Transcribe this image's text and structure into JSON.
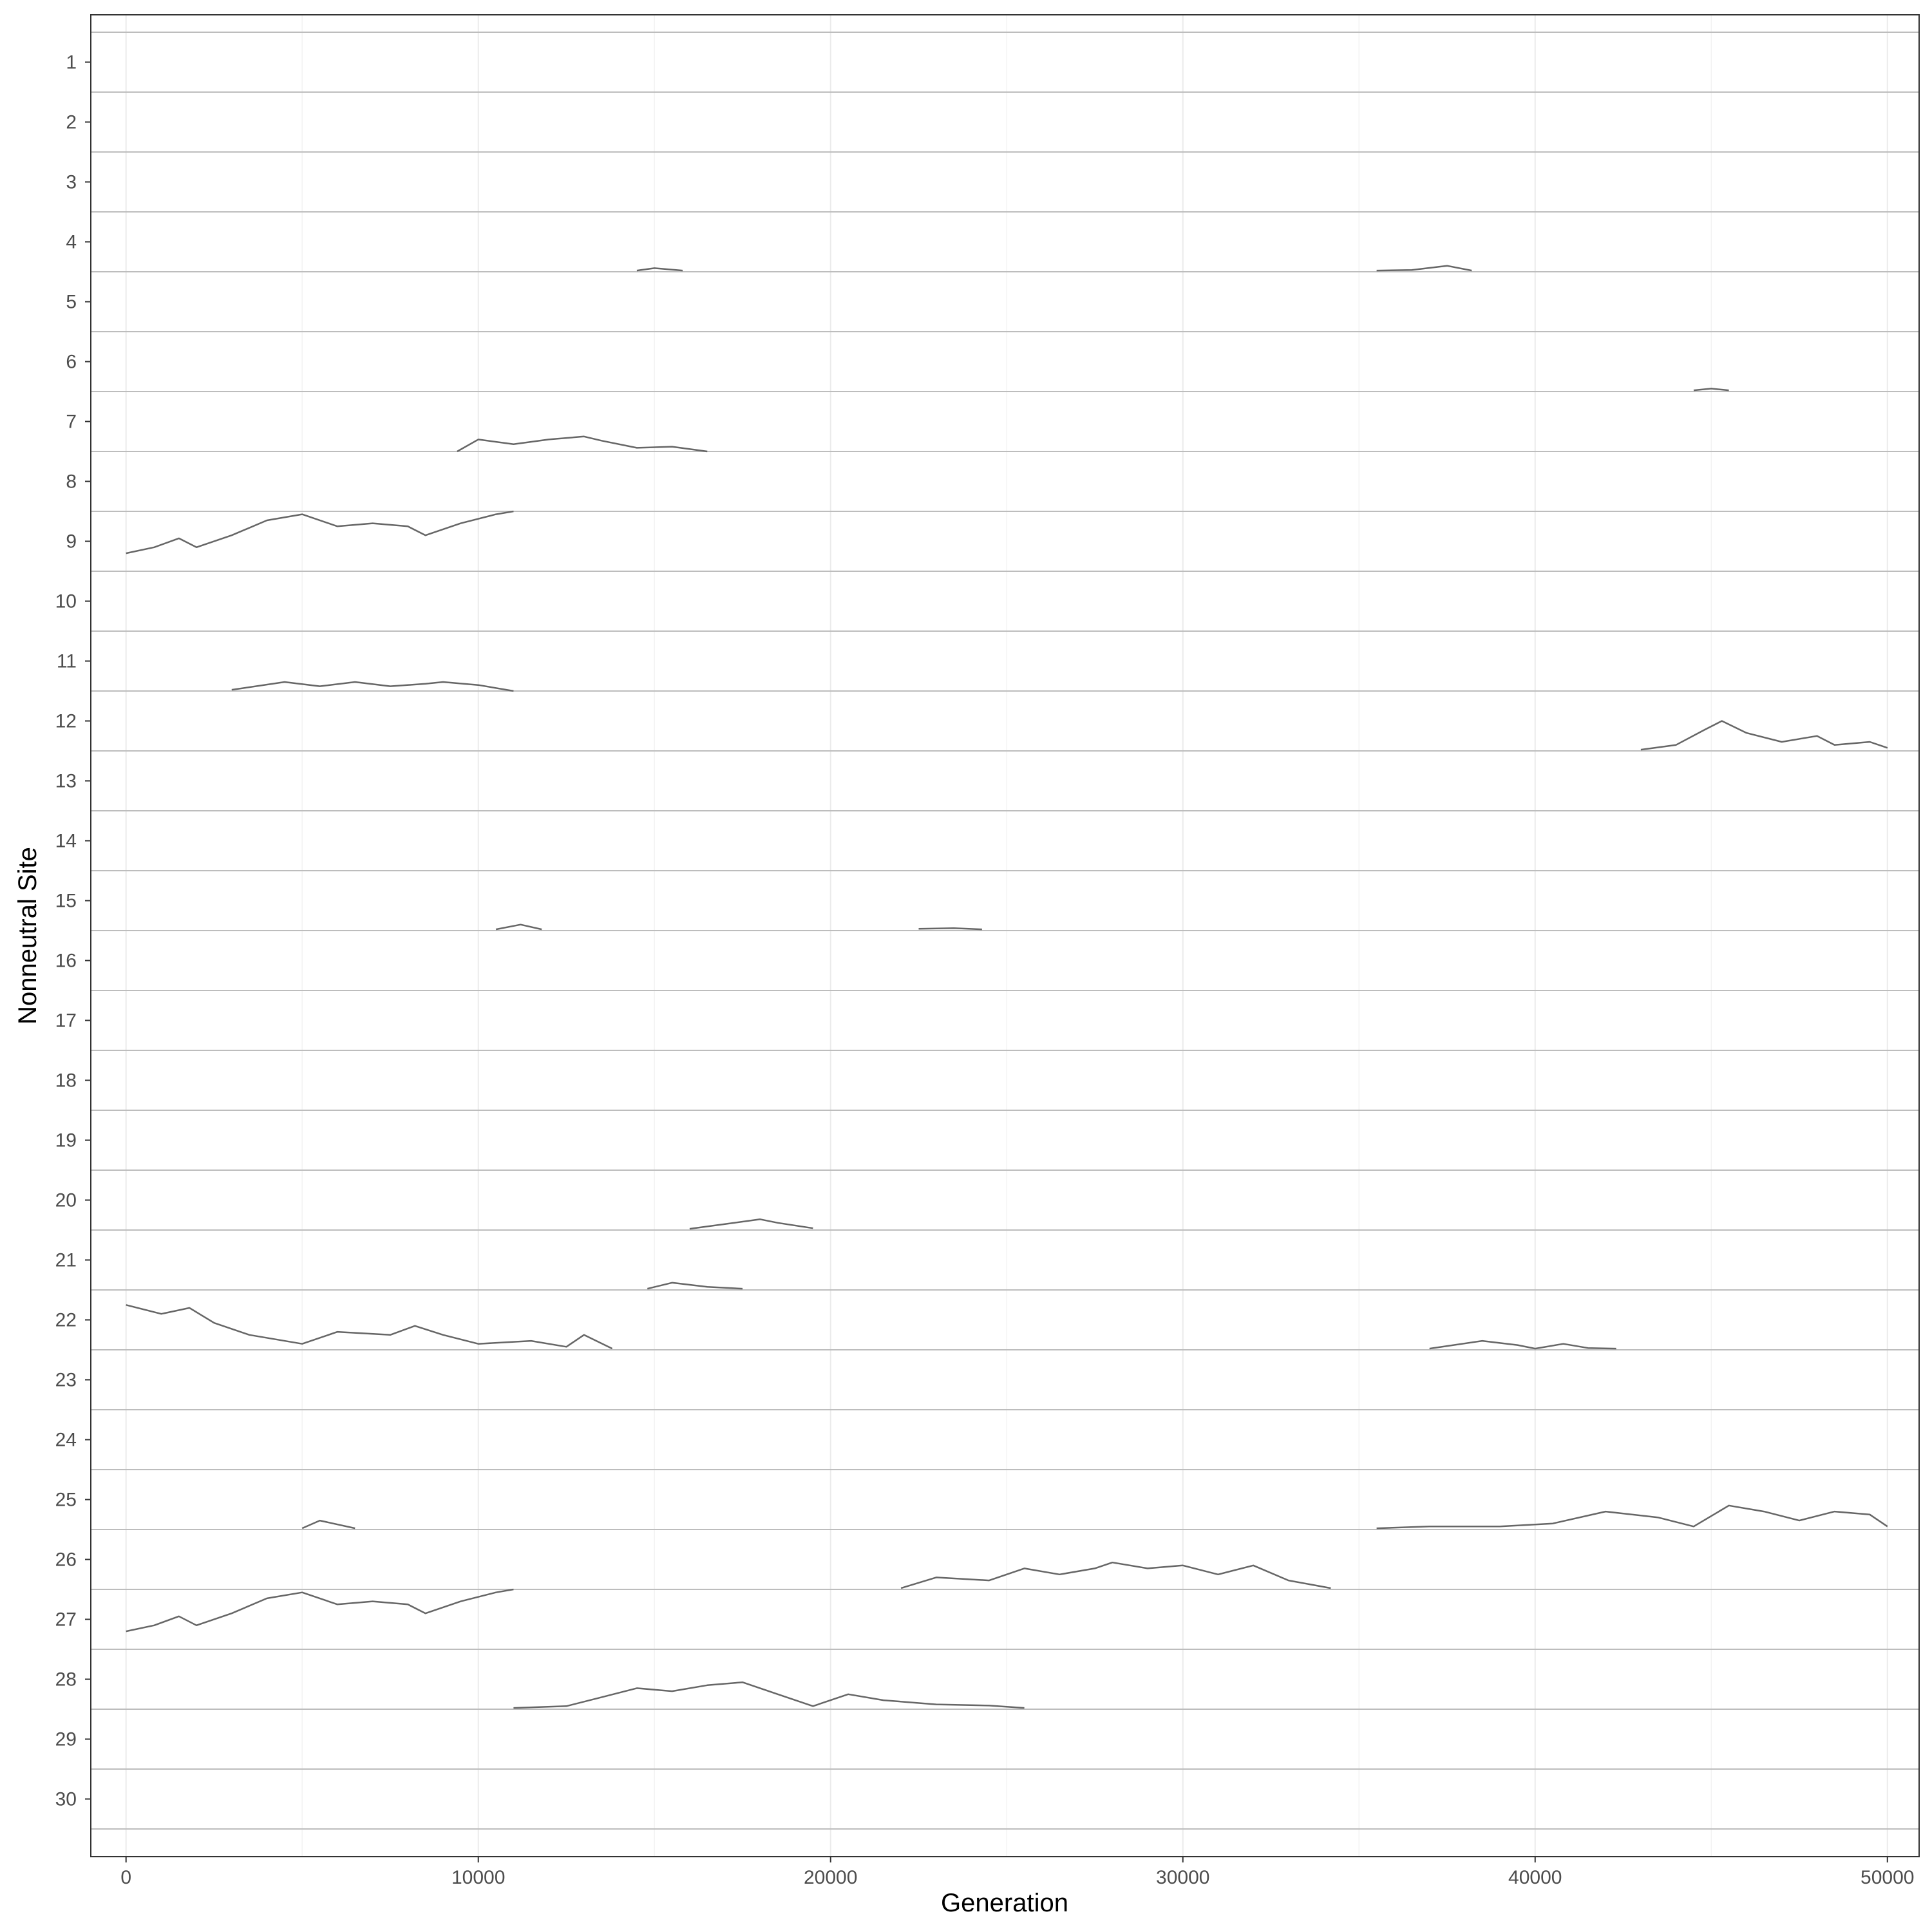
{
  "chart_data": {
    "type": "line",
    "xlabel": "Generation",
    "ylabel": "Nonneutral Site",
    "xlim": [
      -1000,
      50900
    ],
    "x_ticks": [
      0,
      10000,
      20000,
      30000,
      40000,
      50000
    ],
    "x_tick_labels": [
      "0",
      "10000",
      "20000",
      "30000",
      "40000",
      "50000"
    ],
    "y_tick_labels": [
      "1",
      "2",
      "3",
      "4",
      "5",
      "6",
      "7",
      "8",
      "9",
      "10",
      "11",
      "12",
      "13",
      "14",
      "15",
      "16",
      "17",
      "18",
      "19",
      "20",
      "21",
      "22",
      "23",
      "24",
      "25",
      "26",
      "27",
      "28",
      "29",
      "30"
    ],
    "grid": true,
    "line_color": "#666666",
    "baseline_color": "#bdbdbd",
    "value_note": "frequency within each site band (0-1); band height = 1",
    "series": [
      {
        "site": "4",
        "points": [
          [
            35500,
            0.02
          ],
          [
            36500,
            0.03
          ],
          [
            37500,
            0.1
          ],
          [
            38200,
            0.02
          ]
        ]
      },
      {
        "site": "4",
        "points": [
          [
            14500,
            0.02
          ],
          [
            15000,
            0.06
          ],
          [
            15800,
            0.02
          ]
        ]
      },
      {
        "site": "6",
        "points": [
          [
            44500,
            0.02
          ],
          [
            45000,
            0.05
          ],
          [
            45500,
            0.02
          ]
        ]
      },
      {
        "site": "7",
        "points": [
          [
            9400,
            0.0
          ],
          [
            10000,
            0.2
          ],
          [
            11000,
            0.12
          ],
          [
            12000,
            0.2
          ],
          [
            13000,
            0.25
          ],
          [
            13500,
            0.18
          ],
          [
            14500,
            0.06
          ],
          [
            15500,
            0.08
          ],
          [
            16500,
            0.0
          ]
        ]
      },
      {
        "site": "9",
        "points": [
          [
            0,
            0.3
          ],
          [
            800,
            0.4
          ],
          [
            1500,
            0.55
          ],
          [
            2000,
            0.4
          ],
          [
            3000,
            0.6
          ],
          [
            4000,
            0.85
          ],
          [
            5000,
            0.95
          ],
          [
            6000,
            0.75
          ],
          [
            7000,
            0.8
          ],
          [
            8000,
            0.75
          ],
          [
            8500,
            0.6
          ],
          [
            9500,
            0.8
          ],
          [
            10500,
            0.95
          ],
          [
            11000,
            1.0
          ]
        ]
      },
      {
        "site": "11",
        "points": [
          [
            3000,
            0.02
          ],
          [
            4500,
            0.15
          ],
          [
            5500,
            0.08
          ],
          [
            6500,
            0.15
          ],
          [
            7500,
            0.08
          ],
          [
            8500,
            0.12
          ],
          [
            9000,
            0.15
          ],
          [
            10000,
            0.1
          ],
          [
            11000,
            0.0
          ]
        ]
      },
      {
        "site": "12",
        "points": [
          [
            43000,
            0.02
          ],
          [
            44000,
            0.1
          ],
          [
            44800,
            0.35
          ],
          [
            45300,
            0.5
          ],
          [
            46000,
            0.3
          ],
          [
            47000,
            0.15
          ],
          [
            48000,
            0.25
          ],
          [
            48500,
            0.1
          ],
          [
            49500,
            0.15
          ],
          [
            50000,
            0.05
          ]
        ]
      },
      {
        "site": "15",
        "points": [
          [
            10500,
            0.02
          ],
          [
            11200,
            0.1
          ],
          [
            11800,
            0.02
          ]
        ]
      },
      {
        "site": "15",
        "points": [
          [
            22500,
            0.03
          ],
          [
            23500,
            0.04
          ],
          [
            24300,
            0.02
          ]
        ]
      },
      {
        "site": "20",
        "points": [
          [
            16000,
            0.02
          ],
          [
            17000,
            0.1
          ],
          [
            18000,
            0.18
          ],
          [
            18500,
            0.12
          ],
          [
            19500,
            0.03
          ]
        ]
      },
      {
        "site": "21",
        "points": [
          [
            14800,
            0.02
          ],
          [
            15500,
            0.12
          ],
          [
            16500,
            0.05
          ],
          [
            17500,
            0.02
          ]
        ]
      },
      {
        "site": "22",
        "points": [
          [
            0,
            0.75
          ],
          [
            1000,
            0.6
          ],
          [
            1800,
            0.7
          ],
          [
            2500,
            0.45
          ],
          [
            3500,
            0.25
          ],
          [
            5000,
            0.1
          ],
          [
            6000,
            0.3
          ],
          [
            7500,
            0.25
          ],
          [
            8200,
            0.4
          ],
          [
            9000,
            0.25
          ],
          [
            10000,
            0.1
          ],
          [
            11500,
            0.15
          ],
          [
            12500,
            0.05
          ],
          [
            13000,
            0.25
          ],
          [
            13800,
            0.02
          ]
        ]
      },
      {
        "site": "22",
        "points": [
          [
            37000,
            0.02
          ],
          [
            38500,
            0.15
          ],
          [
            39500,
            0.08
          ],
          [
            40000,
            0.02
          ],
          [
            40800,
            0.1
          ],
          [
            41500,
            0.03
          ],
          [
            42300,
            0.02
          ]
        ]
      },
      {
        "site": "25",
        "points": [
          [
            5000,
            0.02
          ],
          [
            5500,
            0.15
          ],
          [
            6500,
            0.02
          ]
        ]
      },
      {
        "site": "25",
        "points": [
          [
            35500,
            0.02
          ],
          [
            37000,
            0.05
          ],
          [
            39000,
            0.05
          ],
          [
            40500,
            0.1
          ],
          [
            42000,
            0.3
          ],
          [
            43500,
            0.2
          ],
          [
            44500,
            0.05
          ],
          [
            45500,
            0.4
          ],
          [
            46500,
            0.3
          ],
          [
            47500,
            0.15
          ],
          [
            48500,
            0.3
          ],
          [
            49500,
            0.25
          ],
          [
            50000,
            0.05
          ]
        ]
      },
      {
        "site": "26",
        "points": [
          [
            22000,
            0.02
          ],
          [
            23000,
            0.2
          ],
          [
            24500,
            0.15
          ],
          [
            25500,
            0.35
          ],
          [
            26500,
            0.25
          ],
          [
            27500,
            0.35
          ],
          [
            28000,
            0.45
          ],
          [
            29000,
            0.35
          ],
          [
            30000,
            0.4
          ],
          [
            31000,
            0.25
          ],
          [
            32000,
            0.4
          ],
          [
            33000,
            0.15
          ],
          [
            34200,
            0.02
          ]
        ]
      },
      {
        "site": "27",
        "points": [
          [
            0,
            0.3
          ],
          [
            800,
            0.4
          ],
          [
            1500,
            0.55
          ],
          [
            2000,
            0.4
          ],
          [
            3000,
            0.6
          ],
          [
            4000,
            0.85
          ],
          [
            5000,
            0.95
          ],
          [
            6000,
            0.75
          ],
          [
            7000,
            0.8
          ],
          [
            8000,
            0.75
          ],
          [
            8500,
            0.6
          ],
          [
            9500,
            0.8
          ],
          [
            10500,
            0.95
          ],
          [
            11000,
            1.0
          ]
        ]
      },
      {
        "site": "28",
        "points": [
          [
            11000,
            0.02
          ],
          [
            12500,
            0.05
          ],
          [
            13500,
            0.2
          ],
          [
            14500,
            0.35
          ],
          [
            15500,
            0.3
          ],
          [
            16500,
            0.4
          ],
          [
            17500,
            0.45
          ],
          [
            18500,
            0.25
          ],
          [
            19500,
            0.05
          ],
          [
            20500,
            0.25
          ],
          [
            21500,
            0.15
          ],
          [
            23000,
            0.08
          ],
          [
            24500,
            0.06
          ],
          [
            25500,
            0.02
          ]
        ]
      }
    ]
  }
}
